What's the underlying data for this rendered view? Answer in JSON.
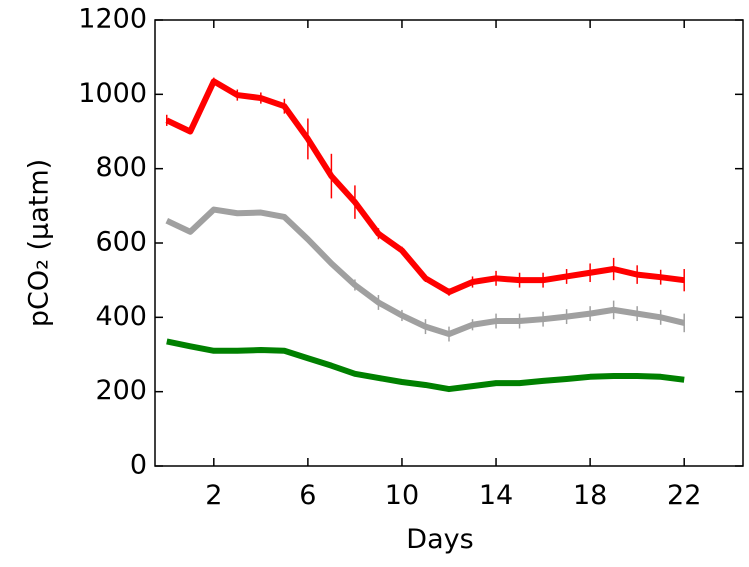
{
  "chart_data": {
    "type": "line",
    "x_label": "Days",
    "y_label": "pCO₂ (μatm)",
    "x": [
      0,
      1,
      2,
      3,
      4,
      5,
      6,
      7,
      8,
      9,
      10,
      11,
      12,
      13,
      14,
      15,
      16,
      17,
      18,
      19,
      20,
      21,
      22
    ],
    "series": [
      {
        "color": "#ff0000",
        "values": [
          930,
          900,
          1035,
          998,
          990,
          968,
          880,
          780,
          710,
          625,
          580,
          505,
          468,
          495,
          505,
          500,
          500,
          510,
          520,
          530,
          515,
          508,
          500
        ],
        "errors": [
          15,
          0,
          10,
          15,
          15,
          20,
          55,
          60,
          45,
          15,
          10,
          10,
          10,
          15,
          20,
          20,
          20,
          20,
          25,
          30,
          25,
          20,
          30
        ]
      },
      {
        "color": "#a0a0a0",
        "values": [
          660,
          630,
          690,
          680,
          682,
          670,
          610,
          545,
          487,
          440,
          405,
          375,
          355,
          380,
          390,
          390,
          395,
          402,
          410,
          420,
          410,
          400,
          385
        ],
        "errors": [
          0,
          0,
          0,
          0,
          0,
          0,
          0,
          0,
          15,
          20,
          15,
          20,
          20,
          15,
          20,
          20,
          20,
          20,
          20,
          25,
          20,
          20,
          25
        ]
      },
      {
        "color": "#008000",
        "values": [
          335,
          322,
          310,
          310,
          312,
          310,
          290,
          270,
          248,
          237,
          226,
          218,
          207,
          215,
          223,
          223,
          229,
          234,
          240,
          242,
          242,
          240,
          232
        ]
      }
    ],
    "xlim": [
      -0.5,
      24.5
    ],
    "ylim": [
      0,
      1200
    ],
    "xticks": [
      2,
      6,
      10,
      14,
      18,
      22
    ],
    "yticks": [
      0,
      200,
      400,
      600,
      800,
      1000,
      1200
    ]
  }
}
